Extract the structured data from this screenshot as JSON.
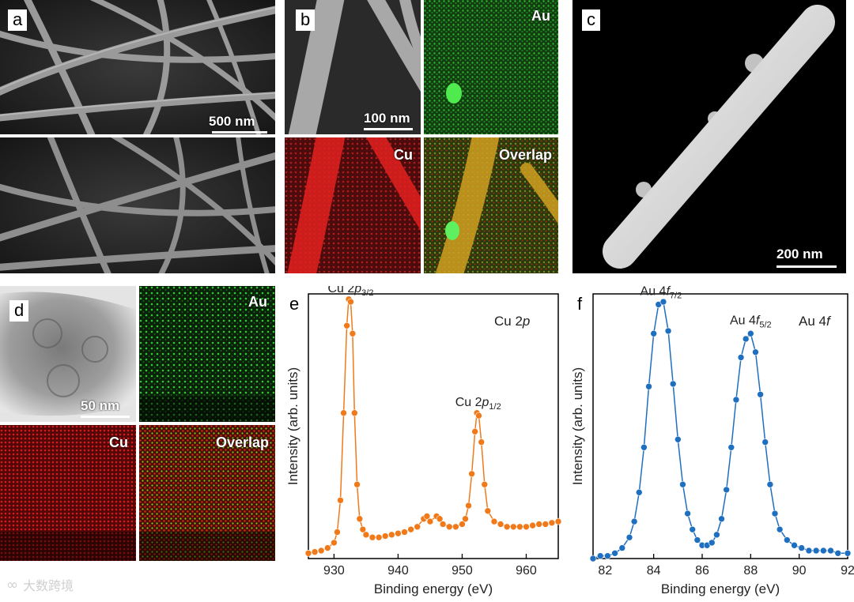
{
  "panels": {
    "a": {
      "label": "a",
      "scalebar": "500 nm"
    },
    "b": {
      "label": "b",
      "scalebar": "100 nm",
      "maps": {
        "au": "Au",
        "cu": "Cu",
        "overlap": "Overlap"
      }
    },
    "c": {
      "label": "c",
      "scalebar": "200 nm"
    },
    "d": {
      "label": "d",
      "scalebar": "50 nm",
      "maps": {
        "au": "Au",
        "cu": "Cu",
        "overlap": "Overlap"
      }
    },
    "e": {
      "label": "e"
    },
    "f": {
      "label": "f"
    }
  },
  "watermark": "大数跨境",
  "colors": {
    "cu_series": "#f07a1a",
    "au_series": "#1f6fc0",
    "au_map": "#22c022",
    "cu_map": "#e01b1b"
  },
  "chart_data": [
    {
      "type": "line",
      "title": "Cu 2p",
      "xlabel": "Binding energy (eV)",
      "ylabel": "Intensity (arb. units)",
      "xlim": [
        926,
        965
      ],
      "ylim": [
        0,
        1
      ],
      "x_ticks": [
        930,
        940,
        950,
        960
      ],
      "y_ticks_shown": false,
      "annotations": [
        {
          "text": "Cu 2p3/2",
          "main": "Cu 2",
          "ital": "p",
          "sub": "3/2",
          "x": 932.6
        },
        {
          "text": "Cu 2p1/2",
          "main": "Cu 2",
          "ital": "p",
          "sub": "1/2",
          "x": 952.5
        }
      ],
      "series": [
        {
          "x": [
            926,
            927,
            928,
            929,
            930,
            930.5,
            931,
            931.5,
            932,
            932.3,
            932.6,
            932.9,
            933.2,
            933.6,
            934,
            934.5,
            935,
            936,
            937,
            938,
            939,
            940,
            941,
            942,
            943,
            944,
            944.5,
            945,
            946,
            946.5,
            947,
            948,
            949,
            950,
            950.5,
            951,
            951.5,
            952,
            952.3,
            952.6,
            953,
            953.5,
            954,
            955,
            956,
            957,
            958,
            959,
            960,
            961,
            962,
            963,
            964,
            965
          ],
          "values": [
            0.02,
            0.025,
            0.03,
            0.04,
            0.06,
            0.1,
            0.22,
            0.55,
            0.88,
            0.98,
            0.97,
            0.85,
            0.55,
            0.28,
            0.15,
            0.11,
            0.09,
            0.08,
            0.08,
            0.085,
            0.09,
            0.095,
            0.1,
            0.11,
            0.12,
            0.15,
            0.16,
            0.14,
            0.16,
            0.15,
            0.13,
            0.12,
            0.12,
            0.13,
            0.15,
            0.2,
            0.32,
            0.48,
            0.55,
            0.54,
            0.44,
            0.28,
            0.18,
            0.14,
            0.13,
            0.12,
            0.12,
            0.12,
            0.12,
            0.125,
            0.13,
            0.13,
            0.135,
            0.14
          ]
        }
      ]
    },
    {
      "type": "line",
      "title": "Au 4f",
      "xlabel": "Binding energy (eV)",
      "ylabel": "Intensity (arb. units)",
      "xlim": [
        81.5,
        92
      ],
      "ylim": [
        0,
        1
      ],
      "x_ticks": [
        82,
        84,
        86,
        88,
        90,
        92
      ],
      "y_ticks_shown": false,
      "annotations": [
        {
          "text": "Au 4f7/2",
          "main": "Au 4",
          "ital": "f",
          "sub": "7/2",
          "x": 84.3
        },
        {
          "text": "Au 4f5/2",
          "main": "Au 4",
          "ital": "f",
          "sub": "5/2",
          "x": 88.0
        }
      ],
      "series": [
        {
          "x": [
            81.5,
            81.8,
            82.1,
            82.4,
            82.7,
            83.0,
            83.2,
            83.4,
            83.6,
            83.8,
            84.0,
            84.2,
            84.4,
            84.6,
            84.8,
            85.0,
            85.2,
            85.4,
            85.6,
            85.8,
            86.0,
            86.2,
            86.4,
            86.6,
            86.8,
            87.0,
            87.2,
            87.4,
            87.6,
            87.8,
            88.0,
            88.2,
            88.4,
            88.6,
            88.8,
            89.0,
            89.2,
            89.5,
            89.8,
            90.1,
            90.4,
            90.7,
            91.0,
            91.3,
            91.6,
            92.0
          ],
          "values": [
            0.0,
            0.01,
            0.01,
            0.02,
            0.04,
            0.08,
            0.14,
            0.25,
            0.42,
            0.65,
            0.85,
            0.96,
            0.97,
            0.86,
            0.66,
            0.45,
            0.28,
            0.17,
            0.11,
            0.07,
            0.05,
            0.05,
            0.06,
            0.09,
            0.15,
            0.26,
            0.42,
            0.6,
            0.76,
            0.83,
            0.85,
            0.78,
            0.62,
            0.44,
            0.28,
            0.17,
            0.11,
            0.07,
            0.05,
            0.04,
            0.03,
            0.03,
            0.03,
            0.03,
            0.02,
            0.02
          ]
        }
      ]
    }
  ]
}
